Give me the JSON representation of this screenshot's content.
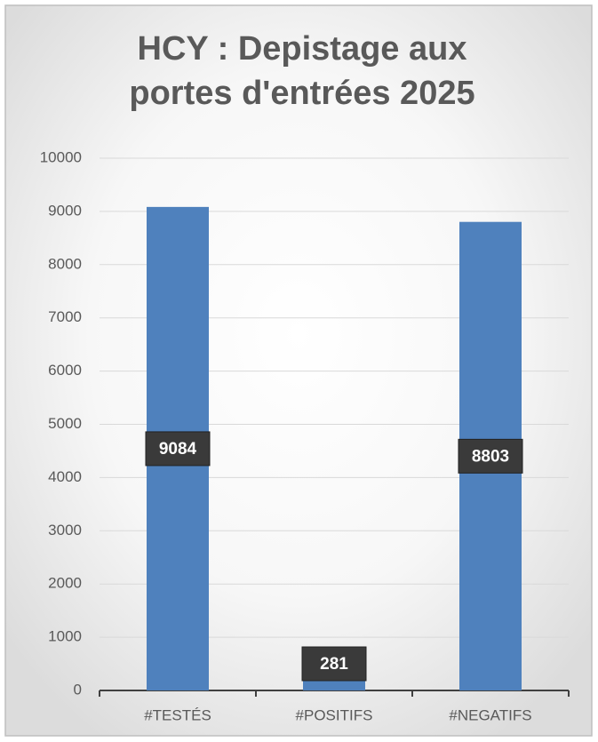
{
  "chart_data": {
    "type": "bar",
    "title": "HCY : Depistage aux portes d'entrées 2025",
    "categories": [
      "#TESTÉS",
      "#POSITIFS",
      "#NEGATIFS"
    ],
    "values": [
      9084,
      281,
      8803
    ],
    "color": "#4f81bd",
    "ylim": [
      0,
      10000
    ],
    "yticks": [
      0,
      1000,
      2000,
      3000,
      4000,
      5000,
      6000,
      7000,
      8000,
      9000,
      10000
    ],
    "grid": true
  }
}
